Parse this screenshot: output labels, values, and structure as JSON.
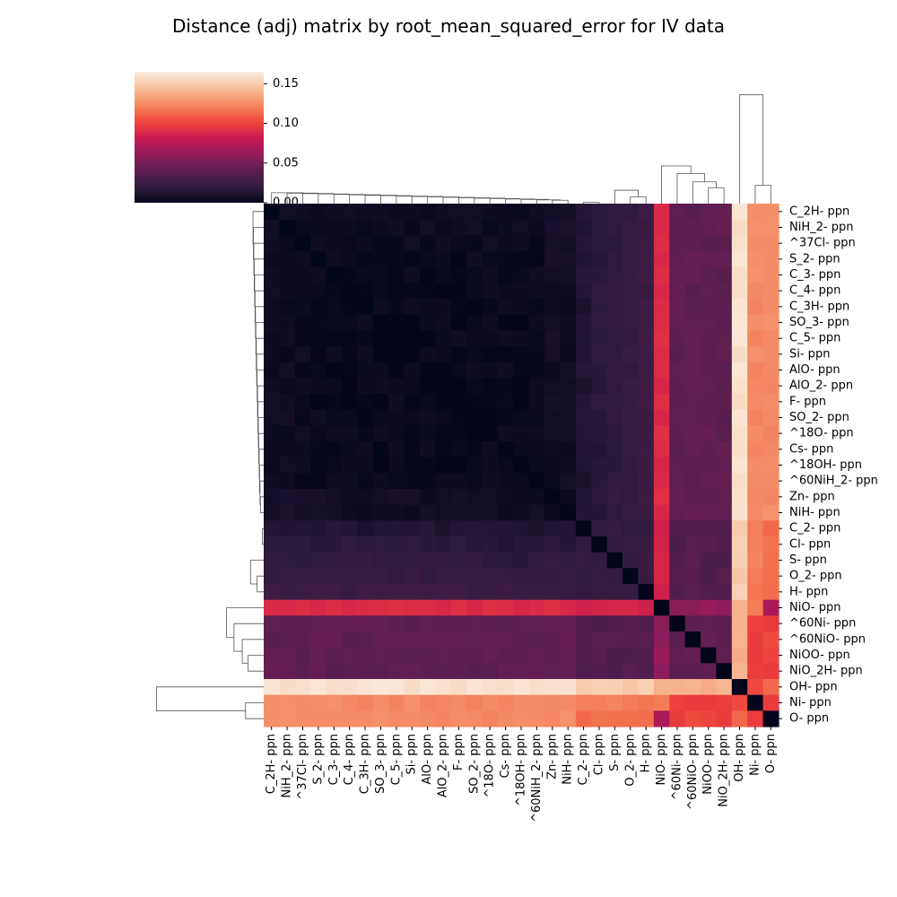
{
  "chart_data": {
    "type": "heatmap",
    "title": "Distance (adj) matrix by root_mean_squared_error for IV data",
    "labels": [
      "C_2H- ppn",
      "NiH_2- ppn",
      "^37Cl- ppn",
      "S_2- ppn",
      "C_3- ppn",
      "C_4- ppn",
      "C_3H- ppn",
      "SO_3- ppn",
      "C_5- ppn",
      "Si- ppn",
      "AlO- ppn",
      "AlO_2- ppn",
      "F- ppn",
      "SO_2- ppn",
      "^18O- ppn",
      "Cs- ppn",
      "^18OH- ppn",
      "^60NiH_2- ppn",
      "Zn- ppn",
      "NiH- ppn",
      "C_2- ppn",
      "Cl- ppn",
      "S- ppn",
      "O_2- ppn",
      "H- ppn",
      "NiO- ppn",
      "^60Ni- ppn",
      "^60NiO- ppn",
      "NiOO- ppn",
      "NiO_2H- ppn",
      "OH- ppn",
      "Ni- ppn",
      "O- ppn"
    ],
    "groups": {
      "core": [
        "C_2H- ppn",
        "NiH_2- ppn",
        "^37Cl- ppn",
        "S_2- ppn",
        "C_3- ppn",
        "C_4- ppn",
        "C_3H- ppn",
        "SO_3- ppn",
        "C_5- ppn",
        "Si- ppn",
        "AlO- ppn",
        "AlO_2- ppn",
        "F- ppn",
        "SO_2- ppn",
        "^18O- ppn",
        "Cs- ppn",
        "^18OH- ppn",
        "^60NiH_2- ppn",
        "Zn- ppn",
        "NiH- ppn"
      ],
      "mid": [
        "C_2- ppn",
        "Cl- ppn",
        "S- ppn",
        "O_2- ppn",
        "H- ppn"
      ],
      "ni_oxides": [
        "NiO- ppn",
        "^60Ni- ppn",
        "^60NiO- ppn",
        "NiOO- ppn",
        "NiO_2H- ppn"
      ]
    },
    "approx_distances": {
      "within_core": 0.002,
      "core_to_mid": 0.012,
      "within_mid": 0.02,
      "core_to_NiO": 0.09,
      "core_to_other_ni_oxides": 0.04,
      "within_ni_oxides": 0.04,
      "core_to_OH": 0.16,
      "core_to_Ni": 0.125,
      "core_to_O": 0.125,
      "OH_to_Ni": 0.1,
      "OH_to_O": 0.115,
      "Ni_to_O": 0.1
    },
    "colorbar": {
      "ticks": [
        "0.00",
        "0.05",
        "0.10",
        "0.15"
      ],
      "range": [
        0,
        0.165
      ],
      "colormap": "rocket",
      "colors": [
        "#03051a",
        "#2c1b3c",
        "#4c1d4b",
        "#751f58",
        "#a11a5b",
        "#cb1b4f",
        "#ed3e3c",
        "#f3714d",
        "#f59e76",
        "#f8c8a8",
        "#faebdd"
      ]
    },
    "dendrogram": {
      "line_color": "#555555"
    }
  }
}
